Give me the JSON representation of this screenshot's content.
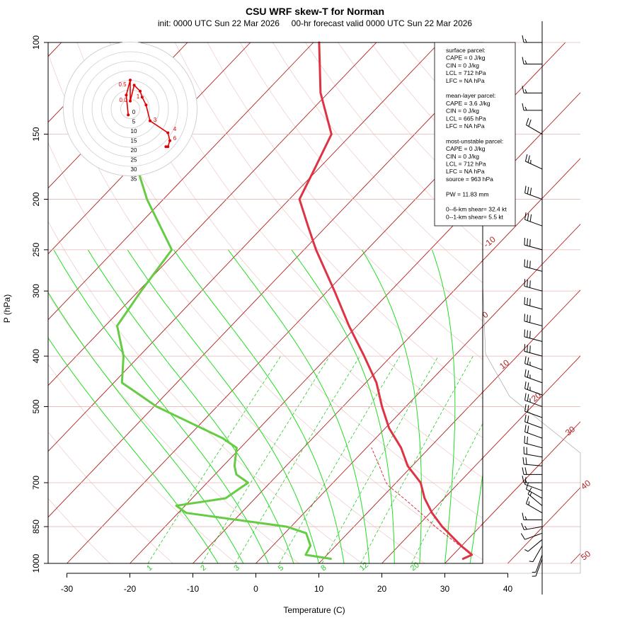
{
  "title": "CSU WRF skew-T for Norman",
  "subtitle": "init: 0000 UTC Sun 22 Mar 2026     00-hr forecast valid 0000 UTC Sun 22 Mar 2026",
  "colors": {
    "temperature": "#dd3344",
    "dewpoint": "#66cc44",
    "isotherm": "#b22222",
    "isobar": "#e8b4b4",
    "mixing_ratio": "#22cc22",
    "moist_adiabat": "#22dd22",
    "dry_adiabat": "#f0c8c8",
    "hodograph": "#e00000"
  },
  "chart_data": {
    "type": "line",
    "chart_kind": "skew-T log-P diagram",
    "title": "CSU WRF skew-T for Norman",
    "xlabel": "Temperature (C)",
    "ylabel": "P (hPa)",
    "ylim": [
      1000,
      100
    ],
    "y_scale": "log",
    "y_ticks": [
      100,
      150,
      200,
      250,
      300,
      400,
      500,
      700,
      850,
      1000
    ],
    "x_ticks": [
      -30,
      -20,
      -10,
      0,
      10,
      20,
      30,
      40
    ],
    "isotherm_labels": [
      "-10",
      "0",
      "10",
      "20",
      "30",
      "40",
      "50"
    ],
    "mixing_ratio_labels": [
      "1",
      "2",
      "3",
      "5",
      "8",
      "12",
      "20"
    ],
    "series": [
      {
        "role": "temperature",
        "points": [
          {
            "p": 980,
            "t": 32.2
          },
          {
            "p": 963,
            "t": 33.0
          },
          {
            "p": 925,
            "t": 29.9
          },
          {
            "p": 850,
            "t": 24.0
          },
          {
            "p": 800,
            "t": 20.3
          },
          {
            "p": 750,
            "t": 16.9
          },
          {
            "p": 700,
            "t": 13.9
          },
          {
            "p": 650,
            "t": 9.3
          },
          {
            "p": 600,
            "t": 5.5
          },
          {
            "p": 550,
            "t": 0.6
          },
          {
            "p": 500,
            "t": -3.8
          },
          {
            "p": 450,
            "t": -8.3
          },
          {
            "p": 400,
            "t": -14.3
          },
          {
            "p": 350,
            "t": -21.3
          },
          {
            "p": 300,
            "t": -28.9
          },
          {
            "p": 250,
            "t": -38.1
          },
          {
            "p": 225,
            "t": -43.0
          },
          {
            "p": 200,
            "t": -48.4
          },
          {
            "p": 175,
            "t": -50.6
          },
          {
            "p": 150,
            "t": -53.2
          },
          {
            "p": 125,
            "t": -61.2
          },
          {
            "p": 100,
            "t": -69.1
          }
        ]
      },
      {
        "role": "dewpoint",
        "points": [
          {
            "p": 980,
            "t": 11.2
          },
          {
            "p": 963,
            "t": 6.6
          },
          {
            "p": 925,
            "t": 6.0
          },
          {
            "p": 875,
            "t": 3.4
          },
          {
            "p": 850,
            "t": -0.7
          },
          {
            "p": 800,
            "t": -18.7
          },
          {
            "p": 775,
            "t": -21.4
          },
          {
            "p": 750,
            "t": -14.7
          },
          {
            "p": 700,
            "t": -13.5
          },
          {
            "p": 675,
            "t": -16.6
          },
          {
            "p": 650,
            "t": -18.2
          },
          {
            "p": 600,
            "t": -20.6
          },
          {
            "p": 575,
            "t": -24.3
          },
          {
            "p": 500,
            "t": -39.6
          },
          {
            "p": 475,
            "t": -44.0
          },
          {
            "p": 450,
            "t": -48.7
          },
          {
            "p": 400,
            "t": -52.5
          },
          {
            "p": 350,
            "t": -58.1
          },
          {
            "p": 300,
            "t": -59.6
          },
          {
            "p": 250,
            "t": -61.0
          },
          {
            "p": 200,
            "t": -72.6
          },
          {
            "p": 180,
            "t": -77.4
          }
        ]
      },
      {
        "role": "parcel",
        "points": [
          {
            "p": 963,
            "t": 33.0
          },
          {
            "p": 925,
            "t": 29.7
          },
          {
            "p": 850,
            "t": 22.9
          },
          {
            "p": 800,
            "t": 18.5
          },
          {
            "p": 750,
            "t": 13.6
          },
          {
            "p": 712,
            "t": 9.5
          },
          {
            "p": 700,
            "t": 8.4
          },
          {
            "p": 650,
            "t": 4.8
          },
          {
            "p": 600,
            "t": 0.8
          }
        ]
      }
    ],
    "hodograph": {
      "ring_labels": [
        "0",
        "5",
        "10",
        "15",
        "20",
        "25",
        "30",
        "35"
      ],
      "height_labels": [
        "0.5",
        "1",
        "0.0",
        "3",
        "4",
        "6"
      ],
      "points": [
        {
          "u": -0.5,
          "v": -1.5
        },
        {
          "u": -1,
          "v": 3.5
        },
        {
          "u": 0,
          "v": 7.3
        },
        {
          "u": 0,
          "v": 2
        },
        {
          "u": 1,
          "v": 6
        },
        {
          "u": 2.5,
          "v": 4.5
        },
        {
          "u": 3,
          "v": 3
        },
        {
          "u": 4,
          "v": 1
        },
        {
          "u": 5,
          "v": -3
        },
        {
          "u": 9.5,
          "v": -6
        },
        {
          "u": 10,
          "v": -8
        },
        {
          "u": 9.5,
          "v": -9.5
        },
        {
          "u": 9,
          "v": -9.5
        }
      ]
    },
    "wind_barbs_kt": [
      {
        "p": 980,
        "spd": 5,
        "dir": 200
      },
      {
        "p": 963,
        "spd": 5,
        "dir": 200
      },
      {
        "p": 925,
        "spd": 5,
        "dir": 210
      },
      {
        "p": 900,
        "spd": 5,
        "dir": 230
      },
      {
        "p": 875,
        "spd": 10,
        "dir": 250
      },
      {
        "p": 850,
        "spd": 15,
        "dir": 260
      },
      {
        "p": 825,
        "spd": 15,
        "dir": 270
      },
      {
        "p": 800,
        "spd": 15,
        "dir": 300
      },
      {
        "p": 775,
        "spd": 15,
        "dir": 310
      },
      {
        "p": 750,
        "spd": 10,
        "dir": 300
      },
      {
        "p": 725,
        "spd": 10,
        "dir": 290
      },
      {
        "p": 700,
        "spd": 15,
        "dir": 270
      },
      {
        "p": 675,
        "spd": 20,
        "dir": 270
      },
      {
        "p": 650,
        "spd": 20,
        "dir": 275
      },
      {
        "p": 625,
        "spd": 20,
        "dir": 280
      },
      {
        "p": 600,
        "spd": 20,
        "dir": 285
      },
      {
        "p": 575,
        "spd": 20,
        "dir": 290
      },
      {
        "p": 550,
        "spd": 20,
        "dir": 290
      },
      {
        "p": 525,
        "spd": 20,
        "dir": 290
      },
      {
        "p": 500,
        "spd": 25,
        "dir": 290
      },
      {
        "p": 475,
        "spd": 25,
        "dir": 290
      },
      {
        "p": 450,
        "spd": 25,
        "dir": 290
      },
      {
        "p": 425,
        "spd": 25,
        "dir": 290
      },
      {
        "p": 400,
        "spd": 30,
        "dir": 285
      },
      {
        "p": 375,
        "spd": 30,
        "dir": 285
      },
      {
        "p": 350,
        "spd": 30,
        "dir": 285
      },
      {
        "p": 325,
        "spd": 30,
        "dir": 285
      },
      {
        "p": 300,
        "spd": 30,
        "dir": 285
      },
      {
        "p": 275,
        "spd": 30,
        "dir": 285
      },
      {
        "p": 250,
        "spd": 30,
        "dir": 285
      },
      {
        "p": 225,
        "spd": 30,
        "dir": 290
      },
      {
        "p": 200,
        "spd": 30,
        "dir": 290
      },
      {
        "p": 175,
        "spd": 25,
        "dir": 295
      },
      {
        "p": 150,
        "spd": 20,
        "dir": 300
      },
      {
        "p": 135,
        "spd": 15,
        "dir": 270
      },
      {
        "p": 125,
        "spd": 15,
        "dir": 270
      },
      {
        "p": 110,
        "spd": 15,
        "dir": 270
      },
      {
        "p": 100,
        "spd": 15,
        "dir": 270
      }
    ],
    "legend_box": [
      "surface parcel:",
      "CAPE = 0 J/kg",
      "CIN = 0 J/kg",
      "LCL = 712 hPa",
      "LFC = NA hPa",
      "",
      "mean-layer parcel:",
      "CAPE = 3.6 J/kg",
      "CIN = 0 J/kg",
      "LCL = 665 hPa",
      "LFC = NA hPa",
      "",
      "most-unstable parcel:",
      "CAPE = 0 J/kg",
      "CIN = 0 J/kg",
      "LCL = 712 hPa",
      "LFC = NA hPa",
      "source = 963 hPa",
      "",
      "PW =  11.83 mm",
      "",
      "0--6-km shear= 32.4 kt",
      "0--1-km shear= 5.5 kt"
    ]
  }
}
